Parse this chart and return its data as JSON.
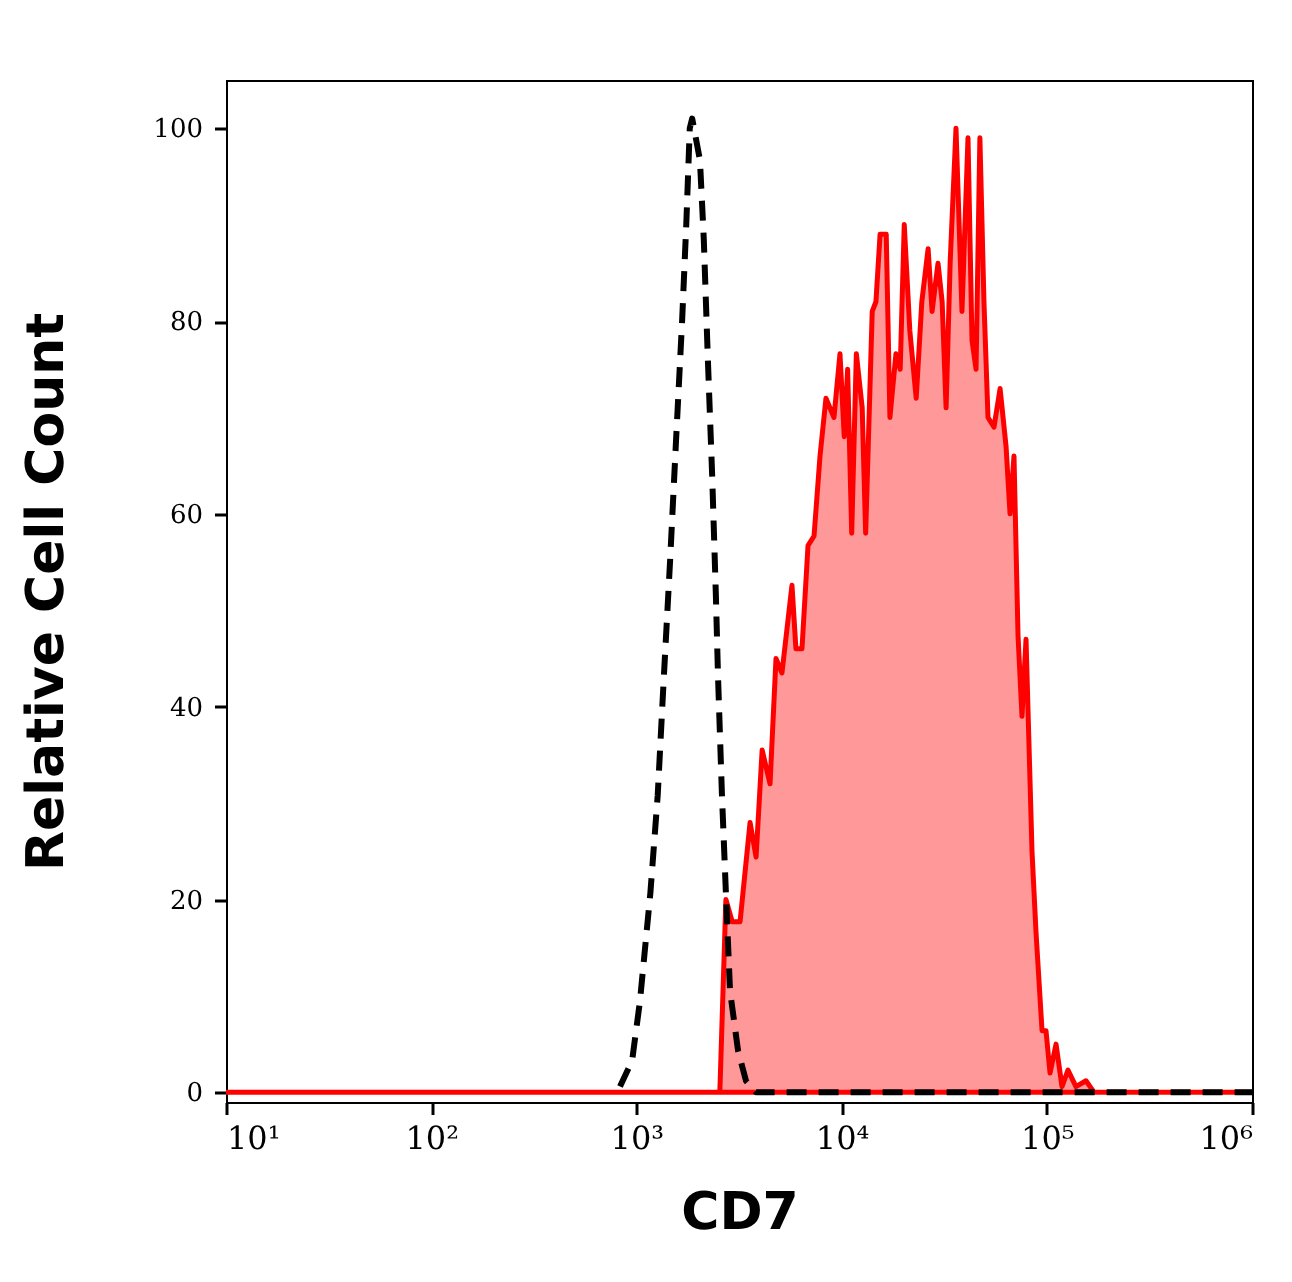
{
  "chart_data": {
    "type": "area",
    "xlabel": "CD7",
    "ylabel": "Relative Cell Count",
    "log": "x",
    "xlim": [
      10,
      1000000
    ],
    "ylim": [
      -1,
      105
    ],
    "xticks": [
      {
        "value": 10,
        "label": "10¹"
      },
      {
        "value": 100,
        "label": "10²"
      },
      {
        "value": 1000,
        "label": "10³"
      },
      {
        "value": 10000,
        "label": "10⁴"
      },
      {
        "value": 100000,
        "label": "10⁵"
      },
      {
        "value": 1000000,
        "label": "10⁶"
      }
    ],
    "yticks": [
      0,
      20,
      40,
      60,
      80,
      100
    ],
    "grid": false,
    "series": [
      {
        "color": "#ff0000",
        "x": [
          10,
          2550,
          2730,
          2930,
          3200,
          3580,
          3830,
          4100,
          4480,
          4790,
          5120,
          5730,
          5990,
          6410,
          6860,
          7340,
          7850,
          8390,
          9180,
          9820,
          10300,
          10700,
          11200,
          11800,
          12600,
          13100,
          14100,
          14700,
          15400,
          16500,
          17200,
          18400,
          19300,
          20200,
          21500,
          23100,
          24600,
          26400,
          27600,
          29500,
          30900,
          32300,
          33800,
          36100,
          38600,
          41300,
          43200,
          45200,
          47200,
          49400,
          51700,
          55300,
          59200,
          63300,
          66200,
          69200,
          72400,
          75700,
          79200,
          84700,
          88600,
          94800,
          99100,
          103700,
          110900,
          118600,
          126800,
          138700,
          155200,
          170000,
          1000000
        ],
        "values": [
          0,
          0,
          20,
          17.7,
          17.7,
          28,
          24.4,
          35.5,
          32,
          45,
          43.5,
          52.6,
          46,
          46,
          56.7,
          57.7,
          66,
          72,
          70,
          76.6,
          68,
          75,
          58,
          76.6,
          71,
          58,
          81,
          82,
          89,
          89,
          70,
          76.6,
          75,
          90,
          79,
          72,
          82,
          87.5,
          81,
          86,
          82,
          71,
          86,
          100,
          81,
          99,
          78,
          75,
          99,
          82,
          70,
          69,
          73,
          67,
          60,
          66,
          47.4,
          39,
          47,
          25,
          16.6,
          6.4,
          6.4,
          2,
          5,
          0.6,
          2.3,
          0.6,
          1.2,
          0,
          0
        ]
      },
      {
        "type": "line",
        "color": "#000000",
        "line_style": "dashed",
        "x": [
          832,
          953,
          1040,
          1170,
          1270,
          1360,
          1460,
          1560,
          1670,
          1750,
          1820,
          1870,
          2040,
          2130,
          2230,
          2340,
          2440,
          2500,
          2610,
          2730,
          2860,
          3130,
          3420,
          3830,
          1000000
        ],
        "values": [
          0.6,
          3.3,
          9.4,
          20.7,
          30.8,
          43,
          55.2,
          67.6,
          80,
          90,
          100,
          101,
          96.7,
          88.5,
          76,
          64,
          51.5,
          43,
          31,
          20.7,
          10.5,
          4.3,
          1.2,
          0,
          0
        ]
      }
    ]
  }
}
